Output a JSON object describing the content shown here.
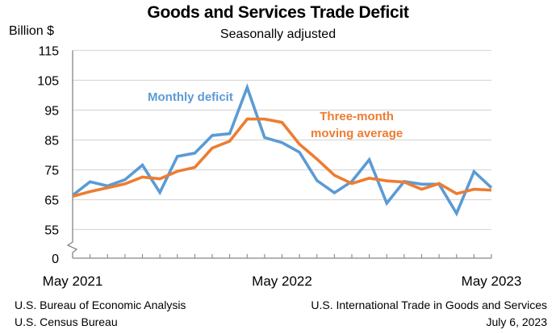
{
  "chart_data": {
    "type": "line",
    "title": "Goods and Services Trade Deficit",
    "subtitle": "Seasonally adjusted",
    "ylabel": "Billion $",
    "xlabel": "",
    "x": [
      "May 2021",
      "Jun 2021",
      "Jul 2021",
      "Aug 2021",
      "Sep 2021",
      "Oct 2021",
      "Nov 2021",
      "Dec 2021",
      "Jan 2022",
      "Feb 2022",
      "Mar 2022",
      "Apr 2022",
      "May 2022",
      "Jun 2022",
      "Jul 2022",
      "Aug 2022",
      "Sep 2022",
      "Oct 2022",
      "Nov 2022",
      "Dec 2022",
      "Jan 2023",
      "Feb 2023",
      "Mar 2023",
      "Apr 2023",
      "May 2023"
    ],
    "x_tick_labels": [
      {
        "index": 0,
        "label": "May 2021"
      },
      {
        "index": 12,
        "label": "May 2022"
      },
      {
        "index": 24,
        "label": "May 2023"
      }
    ],
    "y_ticks": [
      0,
      55,
      65,
      75,
      85,
      95,
      105,
      115
    ],
    "ylim": [
      0,
      115
    ],
    "y_axis_break": "between 0 and 55",
    "grid": true,
    "series": [
      {
        "name": "Monthly deficit",
        "color": "#5B9BD5",
        "values": [
          66.5,
          71.0,
          69.6,
          71.7,
          76.6,
          67.4,
          79.5,
          80.6,
          86.5,
          87.1,
          102.6,
          85.8,
          84.1,
          80.9,
          71.4,
          67.3,
          71.1,
          78.4,
          63.8,
          71.1,
          70.2,
          70.2,
          60.4,
          74.4,
          69.0
        ]
      },
      {
        "name": "Three-month moving average",
        "color": "#ED7D31",
        "values": [
          66.1,
          67.7,
          69.0,
          70.3,
          72.6,
          72.0,
          74.5,
          75.8,
          82.3,
          84.6,
          92.0,
          92.0,
          90.9,
          83.6,
          78.6,
          73.2,
          70.4,
          72.2,
          71.3,
          70.9,
          68.5,
          70.4,
          67.0,
          68.5,
          68.2
        ]
      }
    ],
    "annotations": [
      {
        "text": "Monthly deficit",
        "series": "Monthly deficit"
      },
      {
        "text": "Three-month\nmoving average",
        "series": "Three-month moving average"
      }
    ]
  },
  "labels": {
    "monthly": "Monthly deficit",
    "avg_line1": "Three-month",
    "avg_line2": "moving average"
  },
  "footer": {
    "left": [
      "U.S. Bureau of Economic Analysis",
      "U.S. Census Bureau"
    ],
    "right": [
      "U.S. International Trade in Goods and Services",
      "July 6, 2023"
    ]
  }
}
